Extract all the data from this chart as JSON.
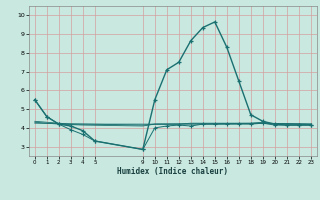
{
  "xlabel": "Humidex (Indice chaleur)",
  "background_color": "#c8e8e0",
  "grid_color": "#d4a0a0",
  "line_color": "#1a7070",
  "xlim": [
    -0.5,
    23.5
  ],
  "ylim": [
    2.5,
    10.5
  ],
  "yticks": [
    3,
    4,
    5,
    6,
    7,
    8,
    9,
    10
  ],
  "xticks": [
    0,
    1,
    2,
    3,
    4,
    5,
    9,
    10,
    11,
    12,
    13,
    14,
    15,
    16,
    17,
    18,
    19,
    20,
    21,
    22,
    23
  ],
  "main_series": [
    [
      0,
      5.5
    ],
    [
      1,
      4.6
    ],
    [
      2,
      4.2
    ],
    [
      3,
      4.1
    ],
    [
      4,
      3.85
    ],
    [
      5,
      3.3
    ],
    [
      9,
      2.85
    ],
    [
      10,
      5.5
    ],
    [
      11,
      7.1
    ],
    [
      12,
      7.5
    ],
    [
      13,
      8.65
    ],
    [
      14,
      9.35
    ],
    [
      15,
      9.65
    ],
    [
      16,
      8.3
    ],
    [
      17,
      6.5
    ],
    [
      18,
      4.7
    ],
    [
      19,
      4.35
    ],
    [
      20,
      4.2
    ],
    [
      21,
      4.15
    ],
    [
      22,
      4.15
    ],
    [
      23,
      4.15
    ]
  ],
  "series_low": [
    [
      0,
      5.5
    ],
    [
      1,
      4.6
    ],
    [
      2,
      4.2
    ],
    [
      3,
      3.9
    ],
    [
      4,
      3.65
    ],
    [
      5,
      3.3
    ],
    [
      9,
      2.85
    ],
    [
      10,
      4.0
    ],
    [
      11,
      4.1
    ],
    [
      12,
      4.15
    ],
    [
      13,
      4.1
    ],
    [
      14,
      4.2
    ],
    [
      15,
      4.2
    ],
    [
      16,
      4.2
    ],
    [
      17,
      4.2
    ],
    [
      18,
      4.2
    ],
    [
      19,
      4.25
    ],
    [
      20,
      4.15
    ],
    [
      21,
      4.15
    ],
    [
      22,
      4.15
    ],
    [
      23,
      4.15
    ]
  ],
  "series_flat1": [
    [
      0,
      4.35
    ],
    [
      1,
      4.3
    ],
    [
      2,
      4.25
    ],
    [
      3,
      4.2
    ],
    [
      5,
      4.2
    ],
    [
      9,
      4.2
    ],
    [
      10,
      4.2
    ],
    [
      11,
      4.2
    ],
    [
      12,
      4.2
    ],
    [
      13,
      4.25
    ],
    [
      14,
      4.25
    ],
    [
      15,
      4.25
    ],
    [
      16,
      4.25
    ],
    [
      17,
      4.25
    ],
    [
      18,
      4.25
    ],
    [
      19,
      4.3
    ],
    [
      20,
      4.2
    ],
    [
      21,
      4.2
    ],
    [
      22,
      4.2
    ],
    [
      23,
      4.2
    ]
  ],
  "series_flat2": [
    [
      0,
      4.3
    ],
    [
      2,
      4.2
    ],
    [
      4,
      4.15
    ],
    [
      9,
      4.1
    ],
    [
      10,
      4.2
    ],
    [
      15,
      4.2
    ],
    [
      19,
      4.25
    ],
    [
      23,
      4.2
    ]
  ],
  "series_flat3": [
    [
      0,
      4.25
    ],
    [
      9,
      4.15
    ],
    [
      10,
      4.2
    ],
    [
      19,
      4.25
    ],
    [
      23,
      4.2
    ]
  ]
}
